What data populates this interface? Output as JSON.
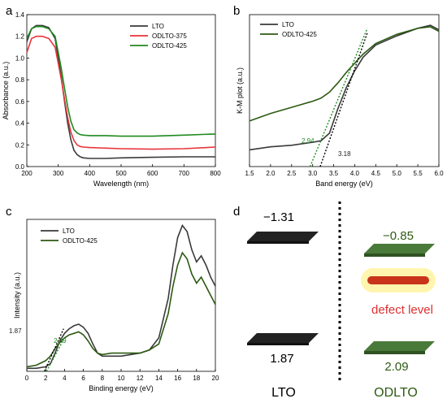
{
  "colors": {
    "lto": "#3a3a3a",
    "odlto375": "#e8333a",
    "odlto425": "#1f8a1f",
    "odlto425_dark": "#2c5a12",
    "fit_black": "#000000",
    "fit_green": "#1f8a1f",
    "block_green": "#4a7a3a",
    "defect_red": "#c8331a",
    "defect_glow": "#fff3a0",
    "defect_text": "#e03030"
  },
  "panels": {
    "a": {
      "letter": "a"
    },
    "b": {
      "letter": "b"
    },
    "c": {
      "letter": "c"
    },
    "d": {
      "letter": "d"
    }
  },
  "chart_data": [
    {
      "panel": "a",
      "type": "line",
      "xlabel": "Wavelength (nm)",
      "ylabel": "Absorbance (a.u.)",
      "xlim": [
        200,
        800
      ],
      "ylim": [
        0.0,
        1.4
      ],
      "xticks": [
        200,
        300,
        400,
        500,
        600,
        700,
        800
      ],
      "yticks": [
        0.0,
        0.2,
        0.4,
        0.6,
        0.8,
        1.0,
        1.2,
        1.4
      ],
      "legend_position": "top-right",
      "series": [
        {
          "name": "LTO",
          "color_key": "lto",
          "x": [
            200,
            215,
            230,
            250,
            270,
            290,
            300,
            310,
            320,
            330,
            340,
            350,
            360,
            370,
            380,
            400,
            450,
            500,
            600,
            700,
            800
          ],
          "y": [
            1.15,
            1.27,
            1.3,
            1.3,
            1.28,
            1.18,
            1.0,
            0.82,
            0.6,
            0.4,
            0.25,
            0.15,
            0.11,
            0.09,
            0.08,
            0.075,
            0.075,
            0.08,
            0.085,
            0.09,
            0.09
          ]
        },
        {
          "name": "ODLTO-375",
          "color_key": "odlto375",
          "x": [
            200,
            215,
            230,
            250,
            270,
            290,
            300,
            310,
            320,
            330,
            340,
            350,
            360,
            370,
            380,
            400,
            450,
            500,
            600,
            700,
            800
          ],
          "y": [
            1.05,
            1.18,
            1.2,
            1.2,
            1.18,
            1.1,
            0.95,
            0.8,
            0.62,
            0.45,
            0.32,
            0.24,
            0.2,
            0.185,
            0.18,
            0.175,
            0.17,
            0.165,
            0.16,
            0.165,
            0.18
          ]
        },
        {
          "name": "ODLTO-425",
          "color_key": "odlto425",
          "x": [
            200,
            215,
            230,
            250,
            270,
            290,
            300,
            310,
            320,
            330,
            340,
            350,
            360,
            370,
            380,
            400,
            450,
            500,
            600,
            700,
            800
          ],
          "y": [
            1.18,
            1.27,
            1.29,
            1.29,
            1.27,
            1.2,
            1.05,
            0.9,
            0.72,
            0.55,
            0.42,
            0.34,
            0.31,
            0.295,
            0.29,
            0.285,
            0.285,
            0.28,
            0.28,
            0.29,
            0.3
          ]
        }
      ]
    },
    {
      "panel": "b",
      "type": "line",
      "xlabel": "Band energy (eV)",
      "ylabel": "K-M plot (a.u.)",
      "xlim": [
        1.5,
        6.0
      ],
      "ylim": [
        0,
        1
      ],
      "xticks": [
        1.5,
        2.0,
        2.5,
        3.0,
        3.5,
        4.0,
        4.5,
        5.0,
        5.5,
        6.0
      ],
      "yticks": [],
      "legend_position": "top-left",
      "series": [
        {
          "name": "LTO",
          "color_key": "lto",
          "x": [
            1.5,
            2.0,
            2.5,
            3.0,
            3.2,
            3.4,
            3.6,
            3.8,
            4.0,
            4.2,
            4.5,
            5.0,
            5.5,
            5.8,
            6.0
          ],
          "y": [
            0.11,
            0.13,
            0.14,
            0.16,
            0.17,
            0.22,
            0.38,
            0.52,
            0.63,
            0.72,
            0.8,
            0.86,
            0.91,
            0.93,
            0.9
          ]
        },
        {
          "name": "ODLTO-425",
          "color_key": "odlto425_dark",
          "x": [
            1.5,
            2.0,
            2.5,
            3.0,
            3.2,
            3.4,
            3.6,
            3.8,
            4.0,
            4.2,
            4.5,
            5.0,
            5.5,
            5.8,
            6.0
          ],
          "y": [
            0.3,
            0.35,
            0.39,
            0.43,
            0.45,
            0.49,
            0.55,
            0.62,
            0.68,
            0.74,
            0.81,
            0.87,
            0.91,
            0.92,
            0.89
          ]
        }
      ],
      "fits": [
        {
          "color_key": "fit_black",
          "x": [
            3.18,
            4.3
          ],
          "y": [
            0.0,
            0.88
          ],
          "label": "3.18"
        },
        {
          "color_key": "fit_green",
          "x": [
            2.94,
            4.3
          ],
          "y": [
            0.0,
            0.91
          ],
          "label": "2.94"
        }
      ]
    },
    {
      "panel": "c",
      "type": "line",
      "xlabel": "Binding energy (eV)",
      "ylabel": "Intensity (a.u.)",
      "xlim": [
        0,
        20
      ],
      "ylim": [
        0,
        1
      ],
      "xticks": [
        0,
        2,
        4,
        6,
        8,
        10,
        12,
        14,
        16,
        18,
        20
      ],
      "yticks": [],
      "legend_position": "top-left",
      "series": [
        {
          "name": "LTO",
          "color_key": "lto",
          "x": [
            0,
            1,
            2,
            2.5,
            3,
            3.5,
            4,
            4.5,
            5,
            5.5,
            6,
            6.5,
            7,
            7.5,
            8,
            9,
            10,
            11,
            12,
            13,
            14,
            15,
            15.5,
            16,
            16.5,
            17,
            17.5,
            18,
            18.5,
            19,
            19.5,
            20
          ],
          "y": [
            0.02,
            0.02,
            0.03,
            0.05,
            0.12,
            0.2,
            0.25,
            0.28,
            0.3,
            0.31,
            0.29,
            0.25,
            0.18,
            0.12,
            0.1,
            0.1,
            0.1,
            0.11,
            0.12,
            0.14,
            0.22,
            0.48,
            0.7,
            0.88,
            0.96,
            0.92,
            0.8,
            0.72,
            0.76,
            0.7,
            0.62,
            0.56
          ]
        },
        {
          "name": "ODLTO-425",
          "color_key": "odlto425_dark",
          "x": [
            0,
            1,
            2,
            2.5,
            3,
            3.5,
            4,
            4.5,
            5,
            5.5,
            6,
            6.5,
            7,
            7.5,
            8,
            9,
            10,
            11,
            12,
            13,
            14,
            15,
            15.5,
            16,
            16.5,
            17,
            17.5,
            18,
            18.5,
            19,
            19.5,
            20
          ],
          "y": [
            0.03,
            0.04,
            0.07,
            0.1,
            0.15,
            0.19,
            0.22,
            0.24,
            0.25,
            0.26,
            0.24,
            0.2,
            0.15,
            0.12,
            0.11,
            0.12,
            0.12,
            0.12,
            0.12,
            0.14,
            0.18,
            0.38,
            0.56,
            0.7,
            0.78,
            0.74,
            0.64,
            0.58,
            0.62,
            0.56,
            0.5,
            0.44
          ]
        }
      ],
      "fits": [
        {
          "color_key": "fit_black",
          "x": [
            1.87,
            3.9
          ],
          "y": [
            0.0,
            0.28
          ],
          "label": "1.87"
        },
        {
          "color_key": "fit_green",
          "x": [
            2.09,
            3.9
          ],
          "y": [
            0.0,
            0.21
          ],
          "label": "2.09"
        }
      ]
    },
    {
      "panel": "d",
      "type": "diagram",
      "columns": [
        {
          "label": "LTO",
          "cb_value": "−1.31",
          "vb_value": "1.87",
          "cb": -1.31,
          "vb": 1.87,
          "color_key": "lto"
        },
        {
          "label": "ODLTO",
          "cb_value": "−0.85",
          "vb_value": "2.09",
          "cb": -0.85,
          "vb": 2.09,
          "color_key": "block_green"
        }
      ],
      "defect_label": "defect level"
    }
  ]
}
